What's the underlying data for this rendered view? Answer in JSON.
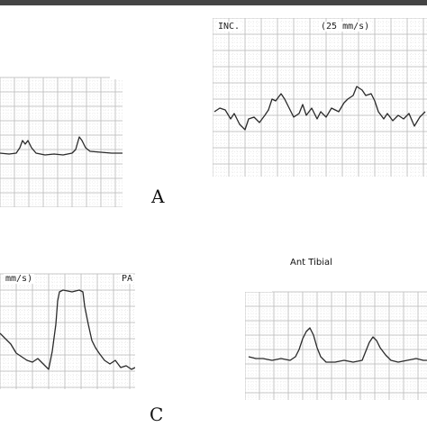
{
  "top_right_strip": {
    "left_text": "INC.",
    "right_text": "(25 mm/s)"
  },
  "label_a": "A",
  "label_c": "C",
  "bottom_left_strip": {
    "left_text": "mm/s)",
    "right_text": "PA"
  },
  "bottom_right_strip": {
    "title": "Ant Tibial"
  },
  "colors": {
    "grid_major": "#b9b9b9",
    "grid_minor": "#d9d9d9",
    "trace": "#2a2a2a",
    "paper": "#ffffff"
  }
}
